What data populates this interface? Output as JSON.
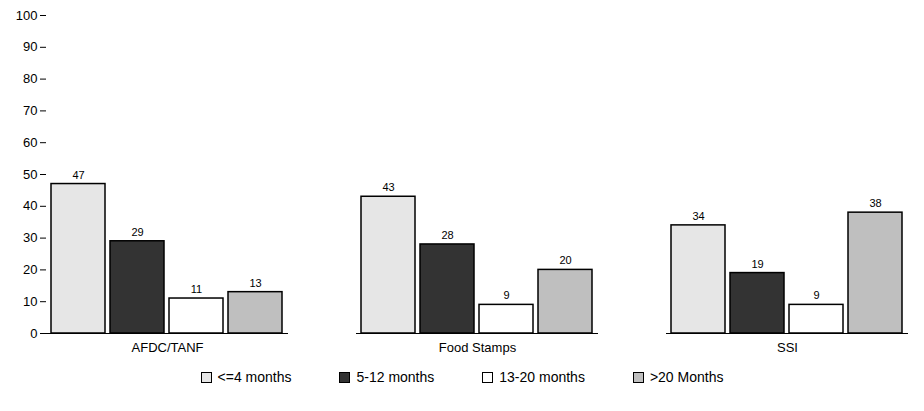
{
  "chart_data": {
    "type": "bar",
    "categories": [
      "AFDC/TANF",
      "Food Stamps",
      "SSI"
    ],
    "series": [
      {
        "name": "<=4 months",
        "color": "#e6e6e6",
        "values": [
          47,
          43,
          34
        ]
      },
      {
        "name": "5-12 months",
        "color": "#333333",
        "values": [
          29,
          28,
          19
        ]
      },
      {
        "name": "13-20 months",
        "color": "#ffffff",
        "values": [
          11,
          9,
          9
        ]
      },
      {
        "name": ">20 Months",
        "color": "#bfbfbf",
        "values": [
          13,
          20,
          38
        ]
      }
    ],
    "ylim": [
      0,
      100
    ],
    "yticks": [
      0,
      10,
      20,
      30,
      40,
      50,
      60,
      70,
      80,
      90,
      100
    ],
    "grid": false,
    "data_labels": true,
    "legend": "bottom"
  }
}
